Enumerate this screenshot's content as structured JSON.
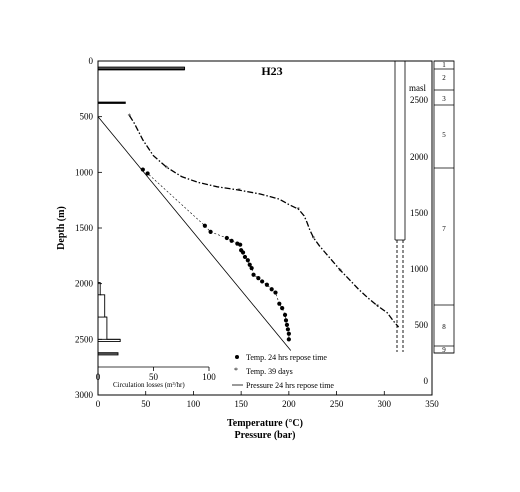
{
  "chart_data": {
    "type": "line",
    "title": "H23",
    "xlabel": "Temperature (°C)",
    "xlabel2": "Pressure (bar)",
    "ylabel": "Depth (m)",
    "xlim": [
      0,
      350
    ],
    "ylim": [
      3000,
      0
    ],
    "x_ticks": [
      "0",
      "50",
      "100",
      "150",
      "200",
      "250",
      "300",
      "350"
    ],
    "y_ticks": [
      "0",
      "500",
      "1000",
      "1500",
      "2000",
      "2500",
      "3000"
    ],
    "legend": {
      "placement": "bottom-center",
      "entries": [
        "Temp. 24 hrs repose time",
        "Temp. 39 days",
        "Pressure 24 hrs repose time"
      ]
    },
    "series": [
      {
        "name": "Temp. 24 hrs repose time",
        "style": "dots",
        "points": [
          [
            47,
            975
          ],
          [
            52,
            1010
          ],
          [
            112,
            1480
          ],
          [
            118,
            1535
          ],
          [
            135,
            1590
          ],
          [
            140,
            1615
          ],
          [
            146,
            1640
          ],
          [
            149,
            1650
          ],
          [
            150,
            1700
          ],
          [
            152,
            1720
          ],
          [
            154,
            1760
          ],
          [
            157,
            1790
          ],
          [
            159,
            1830
          ],
          [
            161,
            1860
          ],
          [
            163,
            1920
          ],
          [
            168,
            1950
          ],
          [
            172,
            1980
          ],
          [
            177,
            2010
          ],
          [
            182,
            2050
          ],
          [
            186,
            2080
          ],
          [
            190,
            2180
          ],
          [
            193,
            2220
          ],
          [
            196,
            2280
          ],
          [
            197,
            2330
          ],
          [
            198,
            2370
          ],
          [
            199,
            2410
          ],
          [
            200,
            2450
          ],
          [
            200,
            2500
          ]
        ]
      },
      {
        "name": "Temp. 39 days",
        "style": "dash-dot",
        "points": [
          [
            33,
            490
          ],
          [
            38,
            560
          ],
          [
            47,
            710
          ],
          [
            58,
            850
          ],
          [
            72,
            955
          ],
          [
            88,
            1040
          ],
          [
            105,
            1090
          ],
          [
            125,
            1130
          ],
          [
            148,
            1160
          ],
          [
            170,
            1195
          ],
          [
            190,
            1240
          ],
          [
            200,
            1290
          ],
          [
            210,
            1330
          ],
          [
            216,
            1390
          ],
          [
            219,
            1450
          ],
          [
            222,
            1520
          ],
          [
            226,
            1590
          ],
          [
            232,
            1660
          ],
          [
            238,
            1720
          ],
          [
            246,
            1800
          ],
          [
            254,
            1880
          ],
          [
            263,
            1960
          ],
          [
            273,
            2050
          ],
          [
            283,
            2130
          ],
          [
            293,
            2200
          ],
          [
            303,
            2260
          ],
          [
            310,
            2340
          ],
          [
            315,
            2390
          ]
        ]
      },
      {
        "name": "Pressure 24 hrs repose time",
        "style": "solid",
        "points": [
          [
            0,
            500
          ],
          [
            202,
            2600
          ]
        ]
      }
    ],
    "circulation_losses": {
      "xlabel": "Circulation losses (m³/hr)",
      "xlim": [
        0,
        100
      ],
      "x_ticks": [
        "0",
        "50",
        "100"
      ],
      "steps": [
        [
          0,
          0,
          55
        ],
        [
          0,
          0,
          65
        ],
        [
          0,
          0,
          75
        ],
        [
          0,
          0,
          80
        ],
        [
          0,
          355,
          395
        ],
        [
          0,
          1990,
          2110
        ],
        [
          0,
          2300,
          2520
        ],
        [
          0,
          2600,
          2640
        ]
      ],
      "loss_values": [
        [
          78,
          55
        ],
        [
          78,
          65
        ],
        [
          78,
          75
        ],
        [
          78,
          80
        ],
        [
          25,
          375
        ],
        [
          3,
          2100
        ],
        [
          8,
          2300
        ],
        [
          20,
          2500
        ],
        [
          18,
          2630
        ]
      ]
    },
    "masl": {
      "label": "masl",
      "ticks": [
        "2500",
        "2000",
        "1500",
        "1000",
        "500",
        "0"
      ]
    },
    "zones": [
      "1",
      "2",
      "3",
      "5",
      "7",
      "8",
      "9"
    ]
  }
}
